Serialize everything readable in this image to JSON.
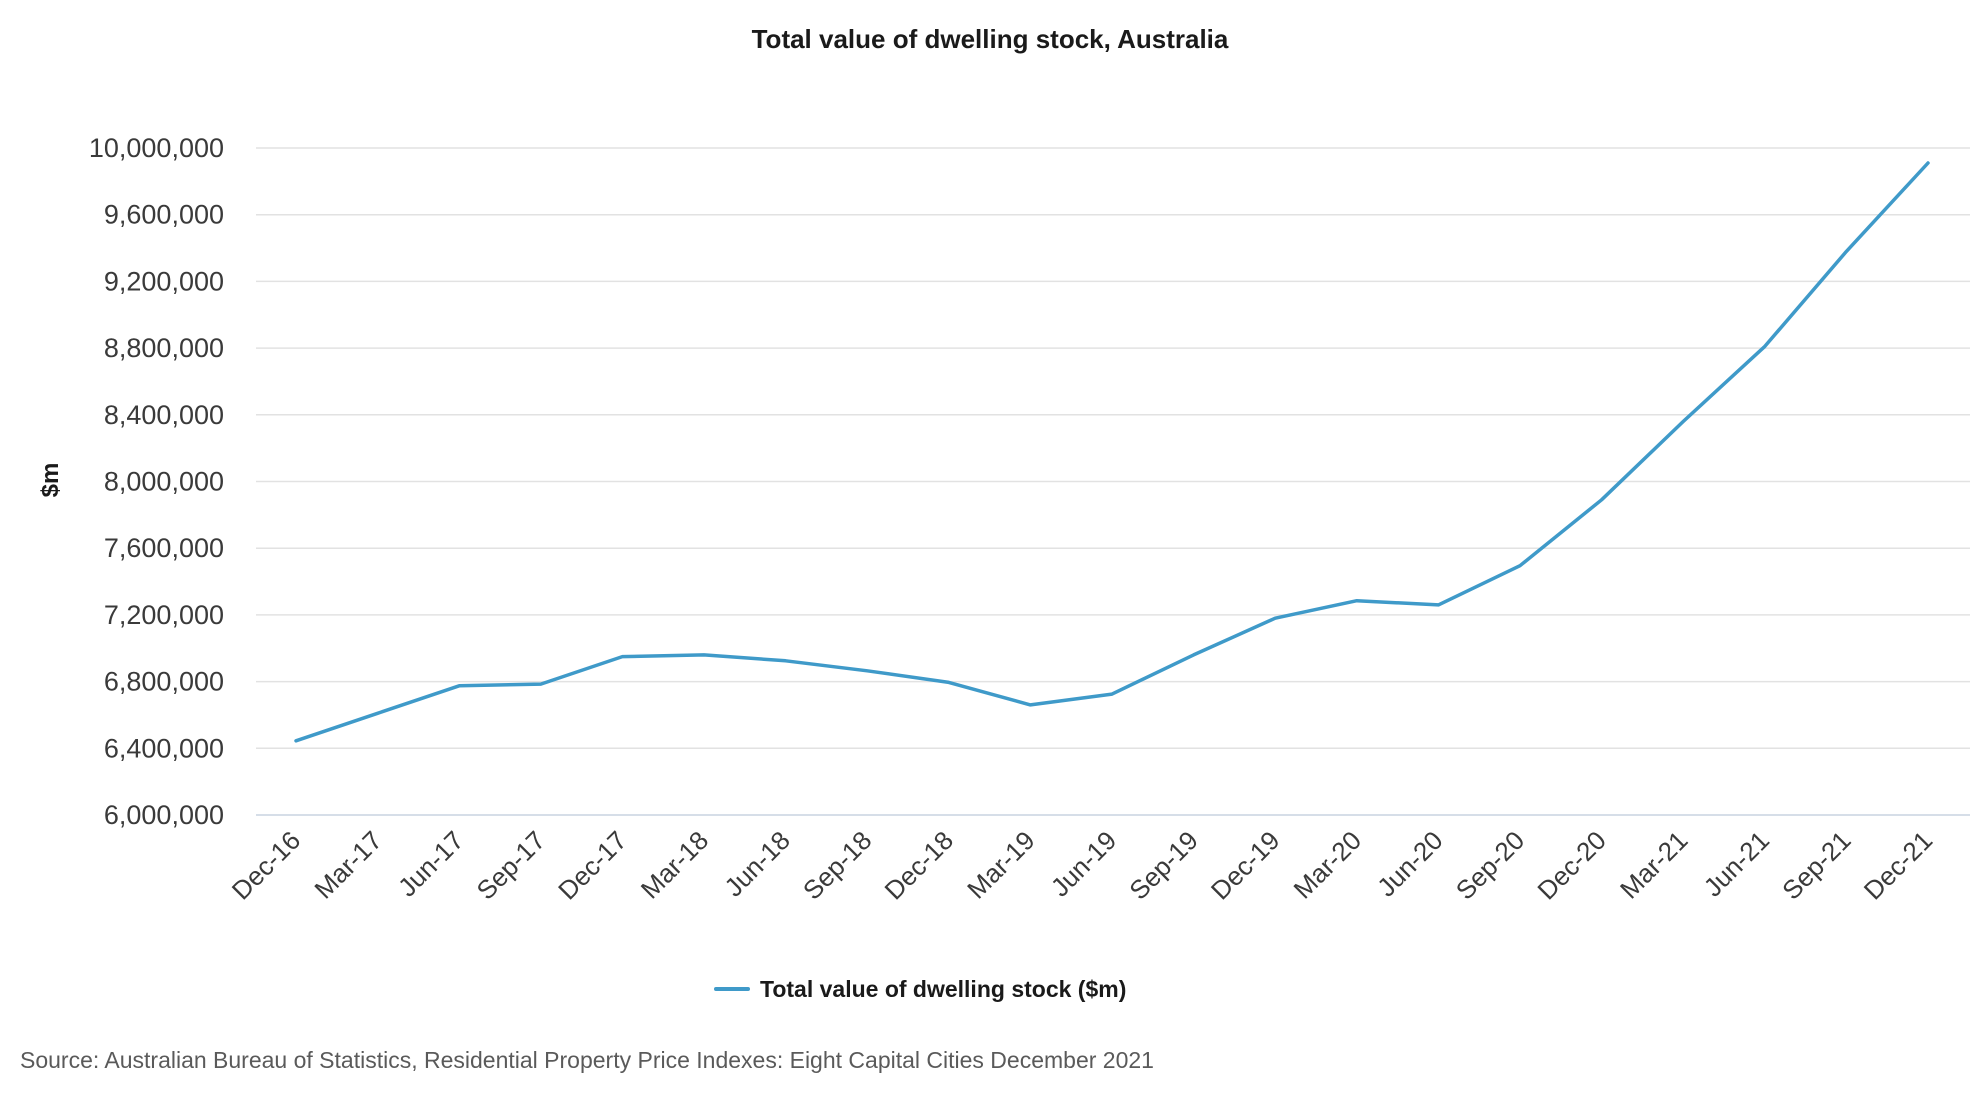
{
  "chart_data": {
    "type": "line",
    "title": "Total value of dwelling stock, Australia",
    "xlabel": "",
    "ylabel": "$m",
    "categories": [
      "Dec-16",
      "Mar-17",
      "Jun-17",
      "Sep-17",
      "Dec-17",
      "Mar-18",
      "Jun-18",
      "Sep-18",
      "Dec-18",
      "Mar-19",
      "Jun-19",
      "Sep-19",
      "Dec-19",
      "Mar-20",
      "Jun-20",
      "Sep-20",
      "Dec-20",
      "Mar-21",
      "Jun-21",
      "Sep-21",
      "Dec-21"
    ],
    "series": [
      {
        "name": "Total value of dwelling stock ($m)",
        "color": "#3f9ac9",
        "values": [
          6445000,
          6610000,
          6775000,
          6785000,
          6950000,
          6960000,
          6925000,
          6865000,
          6795000,
          6660000,
          6725000,
          6960000,
          7180000,
          7285000,
          7260000,
          7495000,
          7890000,
          8360000,
          8810000,
          9380000,
          9910000
        ]
      }
    ],
    "ylim": [
      6000000,
      10000000
    ],
    "yticks": [
      6000000,
      6400000,
      6800000,
      7200000,
      7600000,
      8000000,
      8400000,
      8800000,
      9200000,
      9600000,
      10000000
    ],
    "ytick_labels": [
      "6,000,000",
      "6,400,000",
      "6,800,000",
      "7,200,000",
      "7,600,000",
      "8,000,000",
      "8,400,000",
      "8,800,000",
      "9,200,000",
      "9,600,000",
      "10,000,000"
    ],
    "grid": true,
    "legend_position": "bottom-center"
  },
  "source": "Source: Australian Bureau of Statistics, Residential Property Price Indexes: Eight Capital Cities December 2021"
}
